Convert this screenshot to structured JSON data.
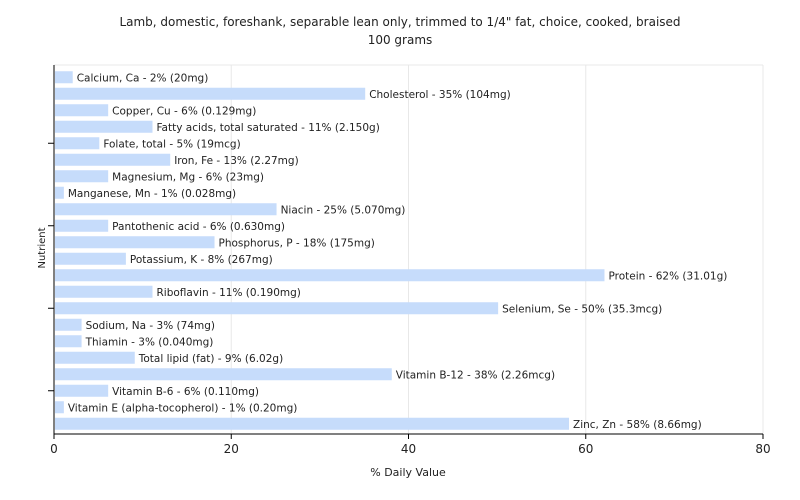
{
  "chart_data": {
    "type": "bar",
    "orientation": "horizontal",
    "title": "Lamb, domestic, foreshank, separable lean only, trimmed to 1/4\" fat, choice, cooked, braised",
    "subtitle": "100 grams",
    "xlabel": "% Daily Value",
    "ylabel": "Nutrient",
    "xlim": [
      0,
      80
    ],
    "xticks": [
      "0",
      "20",
      "40",
      "60",
      "80"
    ],
    "grid": true,
    "bar_color": "#c6dcfb",
    "categories": [
      "Calcium, Ca",
      "Cholesterol",
      "Copper, Cu",
      "Fatty acids, total saturated",
      "Folate, total",
      "Iron, Fe",
      "Magnesium, Mg",
      "Manganese, Mn",
      "Niacin",
      "Pantothenic acid",
      "Phosphorus, P",
      "Potassium, K",
      "Protein",
      "Riboflavin",
      "Selenium, Se",
      "Sodium, Na",
      "Thiamin",
      "Total lipid (fat)",
      "Vitamin B-12",
      "Vitamin B-6",
      "Vitamin E (alpha-tocopherol)",
      "Zinc, Zn"
    ],
    "values": [
      2,
      35,
      6,
      11,
      5,
      13,
      6,
      1,
      25,
      6,
      18,
      8,
      62,
      11,
      50,
      3,
      3,
      9,
      38,
      6,
      1,
      58
    ],
    "labels": [
      "Calcium, Ca - 2% (20mg)",
      "Cholesterol - 35% (104mg)",
      "Copper, Cu - 6% (0.129mg)",
      "Fatty acids, total saturated - 11% (2.150g)",
      "Folate, total - 5% (19mcg)",
      "Iron, Fe - 13% (2.27mg)",
      "Magnesium, Mg - 6% (23mg)",
      "Manganese, Mn - 1% (0.028mg)",
      "Niacin - 25% (5.070mg)",
      "Pantothenic acid - 6% (0.630mg)",
      "Phosphorus, P - 18% (175mg)",
      "Potassium, K - 8% (267mg)",
      "Protein - 62% (31.01g)",
      "Riboflavin - 11% (0.190mg)",
      "Selenium, Se - 50% (35.3mcg)",
      "Sodium, Na - 3% (74mg)",
      "Thiamin - 3% (0.040mg)",
      "Total lipid (fat) - 9% (6.02g)",
      "Vitamin B-12 - 38% (2.26mcg)",
      "Vitamin B-6 - 6% (0.110mg)",
      "Vitamin E (alpha-tocopherol) - 1% (0.20mg)",
      "Zinc, Zn - 58% (8.66mg)"
    ]
  }
}
